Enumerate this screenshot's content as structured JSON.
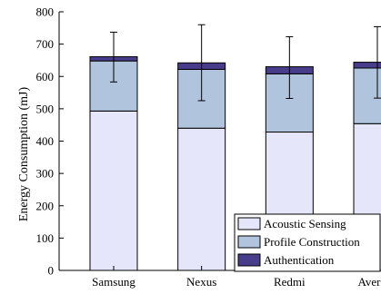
{
  "chart_data": {
    "type": "bar",
    "stacked": true,
    "categories": [
      "Samsung",
      "Nexus",
      "Redmi",
      "Average"
    ],
    "series": [
      {
        "name": "Acoustic Sensing",
        "values": [
          493,
          440,
          428,
          454
        ],
        "color": "#e6e6fa"
      },
      {
        "name": "Profile Construction",
        "values": [
          155,
          182,
          180,
          172
        ],
        "color": "#b0c4de"
      },
      {
        "name": "Authentication",
        "values": [
          13,
          20,
          22,
          18
        ],
        "color": "#483d8b"
      }
    ],
    "error_bars": {
      "center": [
        661,
        642,
        630,
        644
      ],
      "lower": [
        583,
        525,
        532,
        533
      ],
      "upper": [
        737,
        760,
        723,
        754
      ]
    },
    "xlabel": "",
    "ylabel": "Energy Consumption (mJ)",
    "ylim": [
      0,
      800
    ],
    "yticks": [
      0,
      100,
      200,
      300,
      400,
      500,
      600,
      700,
      800
    ],
    "grid": false,
    "legend_position": "bottom-right"
  }
}
